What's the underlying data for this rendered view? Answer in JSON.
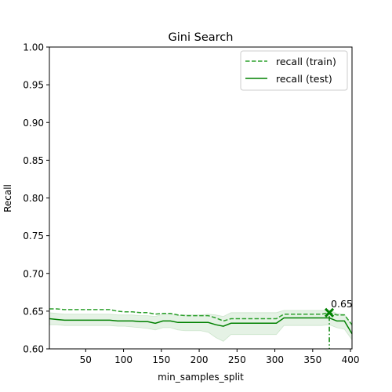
{
  "chart_data": {
    "type": "line",
    "title": "Gini Search",
    "xlabel": "min_samples_split",
    "ylabel": "Recall",
    "xlim": [
      2,
      402
    ],
    "ylim": [
      0.6,
      1.0
    ],
    "xticks": [
      "50",
      "100",
      "150",
      "200",
      "250",
      "300",
      "350",
      "400"
    ],
    "xtick_values": [
      50,
      100,
      150,
      200,
      250,
      300,
      350,
      400
    ],
    "yticks": [
      "0.60",
      "0.65",
      "0.70",
      "0.75",
      "0.80",
      "0.85",
      "0.90",
      "0.95",
      "1.00"
    ],
    "ytick_values": [
      0.6,
      0.65,
      0.7,
      0.75,
      0.8,
      0.85,
      0.9,
      0.95,
      1.0
    ],
    "grid": false,
    "legend_position": "top-right",
    "x": [
      2,
      12,
      22,
      32,
      42,
      52,
      62,
      72,
      82,
      92,
      102,
      112,
      122,
      132,
      142,
      152,
      162,
      172,
      182,
      192,
      202,
      212,
      222,
      232,
      242,
      252,
      262,
      272,
      282,
      292,
      302,
      312,
      322,
      332,
      342,
      352,
      362,
      372,
      382,
      392,
      402
    ],
    "series": [
      {
        "name": "recall (train)",
        "style": "dashed",
        "color": "#2ca02c",
        "values": [
          0.653,
          0.653,
          0.652,
          0.652,
          0.652,
          0.652,
          0.652,
          0.652,
          0.652,
          0.65,
          0.649,
          0.649,
          0.648,
          0.648,
          0.646,
          0.647,
          0.647,
          0.645,
          0.644,
          0.644,
          0.644,
          0.644,
          0.641,
          0.637,
          0.64,
          0.64,
          0.64,
          0.64,
          0.64,
          0.64,
          0.64,
          0.646,
          0.646,
          0.646,
          0.646,
          0.646,
          0.646,
          0.648,
          0.645,
          0.645,
          0.632
        ]
      },
      {
        "name": "recall (test)",
        "style": "solid",
        "color": "#008000",
        "values": [
          0.64,
          0.639,
          0.638,
          0.638,
          0.638,
          0.638,
          0.638,
          0.638,
          0.638,
          0.637,
          0.637,
          0.637,
          0.636,
          0.636,
          0.634,
          0.637,
          0.637,
          0.635,
          0.635,
          0.635,
          0.635,
          0.635,
          0.632,
          0.63,
          0.634,
          0.634,
          0.634,
          0.634,
          0.634,
          0.634,
          0.634,
          0.641,
          0.641,
          0.641,
          0.641,
          0.641,
          0.641,
          0.641,
          0.637,
          0.637,
          0.62
        ],
        "band_lower": [
          0.632,
          0.632,
          0.631,
          0.631,
          0.631,
          0.631,
          0.631,
          0.631,
          0.631,
          0.63,
          0.63,
          0.629,
          0.628,
          0.627,
          0.625,
          0.628,
          0.628,
          0.625,
          0.624,
          0.624,
          0.624,
          0.622,
          0.615,
          0.61,
          0.619,
          0.619,
          0.619,
          0.619,
          0.619,
          0.619,
          0.619,
          0.631,
          0.631,
          0.631,
          0.631,
          0.631,
          0.631,
          0.632,
          0.628,
          0.626,
          0.612
        ],
        "band_upper": [
          0.648,
          0.647,
          0.646,
          0.646,
          0.646,
          0.646,
          0.646,
          0.646,
          0.646,
          0.645,
          0.645,
          0.645,
          0.644,
          0.644,
          0.643,
          0.646,
          0.646,
          0.644,
          0.645,
          0.645,
          0.645,
          0.646,
          0.645,
          0.643,
          0.648,
          0.648,
          0.648,
          0.648,
          0.648,
          0.648,
          0.648,
          0.651,
          0.651,
          0.651,
          0.651,
          0.651,
          0.651,
          0.651,
          0.647,
          0.646,
          0.63
        ]
      }
    ],
    "best": {
      "x": 372,
      "y": 0.648,
      "label": "0.65"
    }
  }
}
